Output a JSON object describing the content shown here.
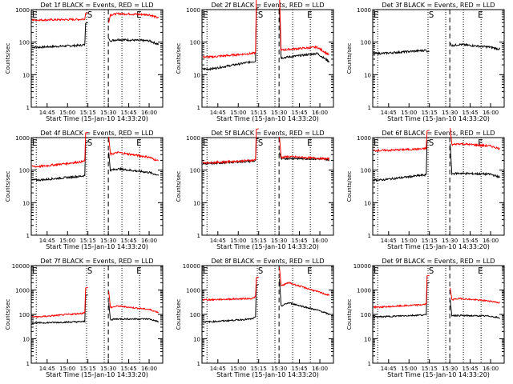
{
  "chart_data": [
    {
      "type": "line",
      "title": "Det 1f BLACK = Events, RED = LLD",
      "xlabel": "Start Time (15-Jan-10 14:33:20)",
      "ylabel": "Counts/sec",
      "yscale": "log",
      "ylim": [
        1,
        1000
      ],
      "series": [
        {
          "name": "BLACK",
          "color": "#000000",
          "values": [
            {
              "x": "14:40",
              "y": 70
            },
            {
              "x": "15:10",
              "y": 80
            },
            {
              "x": "15:37",
              "y": 120
            },
            {
              "x": "16:00",
              "y": 110
            },
            {
              "x": "16:07",
              "y": 85
            }
          ]
        },
        {
          "name": "RED",
          "color": "#ff0000",
          "values": [
            {
              "x": "14:40",
              "y": 480
            },
            {
              "x": "15:10",
              "y": 500
            },
            {
              "x": "15:37",
              "y": 750
            },
            {
              "x": "16:00",
              "y": 700
            },
            {
              "x": "16:07",
              "y": 550
            }
          ]
        }
      ]
    },
    {
      "type": "line",
      "title": "Det 2f BLACK = Events, RED = LLD",
      "xlabel": "Start Time (15-Jan-10 14:33:20)",
      "ylabel": "Counts/sec",
      "yscale": "log",
      "ylim": [
        1,
        1000
      ],
      "series": [
        {
          "name": "BLACK",
          "color": "#000000",
          "values": [
            {
              "x": "14:40",
              "y": 15
            },
            {
              "x": "15:10",
              "y": 25
            },
            {
              "x": "15:37",
              "y": 35
            },
            {
              "x": "15:58",
              "y": 45
            },
            {
              "x": "16:07",
              "y": 25
            }
          ]
        },
        {
          "name": "RED",
          "color": "#ff0000",
          "values": [
            {
              "x": "14:40",
              "y": 35
            },
            {
              "x": "15:10",
              "y": 45
            },
            {
              "x": "15:37",
              "y": 60
            },
            {
              "x": "15:58",
              "y": 70
            },
            {
              "x": "16:07",
              "y": 40
            }
          ]
        }
      ]
    },
    {
      "type": "line",
      "title": "Det 3f BLACK = Events, RED = LLD",
      "xlabel": "Start Time (15-Jan-10 14:33:20)",
      "ylabel": "Counts/sec",
      "yscale": "log",
      "ylim": [
        1,
        1000
      ],
      "series": [
        {
          "name": "BLACK",
          "color": "#000000",
          "values": [
            {
              "x": "14:40",
              "y": 45
            },
            {
              "x": "15:10",
              "y": 55
            },
            {
              "x": "15:37",
              "y": 85
            },
            {
              "x": "16:00",
              "y": 70
            },
            {
              "x": "16:07",
              "y": 60
            }
          ]
        }
      ]
    },
    {
      "type": "line",
      "title": "Det 4f BLACK = Events, RED = LLD",
      "xlabel": "Start Time (15-Jan-10 14:33:20)",
      "ylabel": "Counts/sec",
      "yscale": "log",
      "ylim": [
        1,
        1000
      ],
      "series": [
        {
          "name": "BLACK",
          "color": "#000000",
          "values": [
            {
              "x": "14:40",
              "y": 50
            },
            {
              "x": "15:10",
              "y": 65
            },
            {
              "x": "15:37",
              "y": 110
            },
            {
              "x": "16:00",
              "y": 85
            },
            {
              "x": "16:07",
              "y": 70
            }
          ]
        },
        {
          "name": "RED",
          "color": "#ff0000",
          "values": [
            {
              "x": "14:40",
              "y": 130
            },
            {
              "x": "15:10",
              "y": 180
            },
            {
              "x": "15:37",
              "y": 350
            },
            {
              "x": "16:00",
              "y": 250
            },
            {
              "x": "16:07",
              "y": 190
            }
          ]
        }
      ]
    },
    {
      "type": "line",
      "title": "Det 5f BLACK = Events, RED = LLD",
      "xlabel": "Start Time (15-Jan-10 14:33:20)",
      "ylabel": "Counts/sec",
      "yscale": "log",
      "ylim": [
        1,
        1000
      ],
      "series": [
        {
          "name": "BLACK",
          "color": "#000000",
          "values": [
            {
              "x": "14:40",
              "y": 160
            },
            {
              "x": "15:10",
              "y": 190
            },
            {
              "x": "15:37",
              "y": 230
            },
            {
              "x": "16:00",
              "y": 220
            },
            {
              "x": "16:07",
              "y": 210
            }
          ]
        },
        {
          "name": "RED",
          "color": "#ff0000",
          "values": [
            {
              "x": "14:40",
              "y": 170
            },
            {
              "x": "15:10",
              "y": 200
            },
            {
              "x": "15:37",
              "y": 260
            },
            {
              "x": "16:00",
              "y": 230
            },
            {
              "x": "16:07",
              "y": 220
            }
          ]
        }
      ]
    },
    {
      "type": "line",
      "title": "Det 6f BLACK = Events, RED = LLD",
      "xlabel": "Start Time (15-Jan-10 14:33:20)",
      "ylabel": "Counts/sec",
      "yscale": "log",
      "ylim": [
        1,
        1000
      ],
      "series": [
        {
          "name": "BLACK",
          "color": "#000000",
          "values": [
            {
              "x": "14:40",
              "y": 50
            },
            {
              "x": "15:10",
              "y": 70
            },
            {
              "x": "15:37",
              "y": 80
            },
            {
              "x": "16:00",
              "y": 75
            },
            {
              "x": "16:07",
              "y": 60
            }
          ]
        },
        {
          "name": "RED",
          "color": "#ff0000",
          "values": [
            {
              "x": "14:40",
              "y": 400
            },
            {
              "x": "15:10",
              "y": 450
            },
            {
              "x": "15:37",
              "y": 650
            },
            {
              "x": "16:00",
              "y": 550
            },
            {
              "x": "16:07",
              "y": 450
            }
          ]
        }
      ]
    },
    {
      "type": "line",
      "title": "Det 7f BLACK = Events, RED = LLD",
      "xlabel": "Start Time (15-Jan-10 14:33:20)",
      "ylabel": "Counts/sec",
      "yscale": "log",
      "ylim": [
        1,
        10000
      ],
      "series": [
        {
          "name": "BLACK",
          "color": "#000000",
          "values": [
            {
              "x": "14:40",
              "y": 45
            },
            {
              "x": "15:10",
              "y": 50
            },
            {
              "x": "15:37",
              "y": 65
            },
            {
              "x": "16:00",
              "y": 65
            },
            {
              "x": "16:07",
              "y": 50
            }
          ]
        },
        {
          "name": "RED",
          "color": "#ff0000",
          "values": [
            {
              "x": "14:40",
              "y": 80
            },
            {
              "x": "15:10",
              "y": 110
            },
            {
              "x": "15:37",
              "y": 220
            },
            {
              "x": "16:00",
              "y": 160
            },
            {
              "x": "16:07",
              "y": 120
            }
          ]
        }
      ]
    },
    {
      "type": "line",
      "title": "Det 8f BLACK = Events, RED = LLD",
      "xlabel": "Start Time (15-Jan-10 14:33:20)",
      "ylabel": "Counts/sec",
      "yscale": "log",
      "ylim": [
        1,
        10000
      ],
      "series": [
        {
          "name": "BLACK",
          "color": "#000000",
          "values": [
            {
              "x": "14:40",
              "y": 50
            },
            {
              "x": "15:10",
              "y": 65
            },
            {
              "x": "15:37",
              "y": 300
            },
            {
              "x": "16:00",
              "y": 140
            },
            {
              "x": "16:07",
              "y": 100
            }
          ]
        },
        {
          "name": "RED",
          "color": "#ff0000",
          "values": [
            {
              "x": "14:40",
              "y": 400
            },
            {
              "x": "15:10",
              "y": 450
            },
            {
              "x": "15:37",
              "y": 2000
            },
            {
              "x": "16:00",
              "y": 800
            },
            {
              "x": "16:07",
              "y": 600
            }
          ]
        }
      ]
    },
    {
      "type": "line",
      "title": "Det 9f BLACK = Events, RED = LLD",
      "xlabel": "Start Time (15-Jan-10 14:33:20)",
      "ylabel": "Counts/sec",
      "yscale": "log",
      "ylim": [
        1,
        10000
      ],
      "series": [
        {
          "name": "BLACK",
          "color": "#000000",
          "values": [
            {
              "x": "14:40",
              "y": 80
            },
            {
              "x": "15:10",
              "y": 95
            },
            {
              "x": "15:37",
              "y": 90
            },
            {
              "x": "16:00",
              "y": 85
            },
            {
              "x": "16:07",
              "y": 70
            }
          ]
        },
        {
          "name": "RED",
          "color": "#ff0000",
          "values": [
            {
              "x": "14:40",
              "y": 200
            },
            {
              "x": "15:10",
              "y": 250
            },
            {
              "x": "15:37",
              "y": 450
            },
            {
              "x": "16:00",
              "y": 350
            },
            {
              "x": "16:07",
              "y": 300
            }
          ]
        }
      ]
    }
  ],
  "markers": {
    "start": "S",
    "end": "E"
  },
  "x_ticks": [
    "14:45",
    "15:00",
    "15:15",
    "15:30",
    "15:45",
    "16:00"
  ],
  "x_range": [
    "14:33:20",
    "16:10:00"
  ],
  "event_lines": [
    "14:37",
    "15:14",
    "15:27",
    "15:30",
    "15:40",
    "15:53"
  ],
  "step_time": "15:13",
  "gap": [
    "15:15",
    "15:30"
  ],
  "gap_edge_values": [
    [
      380,
      130
    ],
    [
      1100,
      1100
    ],
    [
      50,
      95
    ],
    [
      700,
      350
    ],
    [
      900,
      350
    ],
    [
      800,
      650
    ],
    [
      600,
      300
    ],
    [
      1600,
      2800
    ],
    [
      1900,
      400
    ]
  ],
  "tick_labels": {
    "1": "1",
    "10": "10",
    "100": "100",
    "1000": "1000",
    "10000": "10000"
  }
}
